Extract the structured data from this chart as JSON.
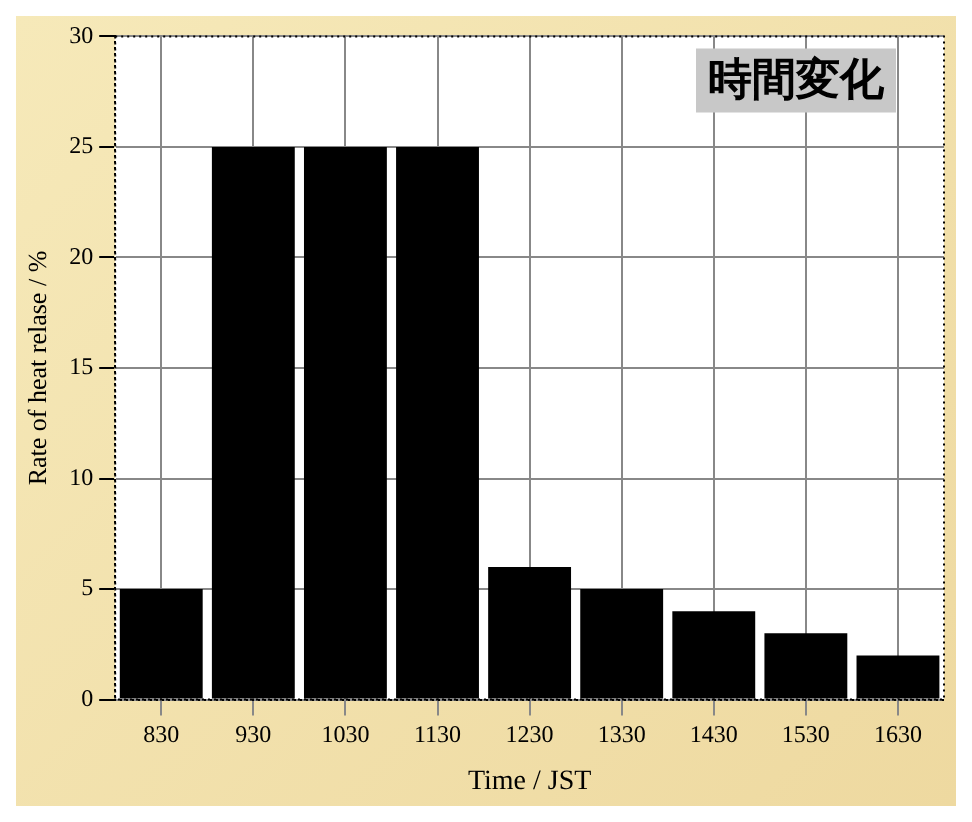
{
  "chart_data": {
    "type": "bar",
    "xlabel": "Time / JST",
    "ylabel": "Rate of heat relase / %",
    "categories": [
      "830",
      "930",
      "1030",
      "1130",
      "1230",
      "1330",
      "1430",
      "1530",
      "1630"
    ],
    "values": [
      5,
      25,
      25,
      25,
      6,
      5,
      4,
      3,
      2
    ],
    "color": "#000000",
    "ylim": [
      0,
      30
    ],
    "yticks": [
      0,
      5,
      10,
      15,
      20,
      25,
      30
    ],
    "grid": true,
    "annotations": [
      "時間変化"
    ]
  }
}
